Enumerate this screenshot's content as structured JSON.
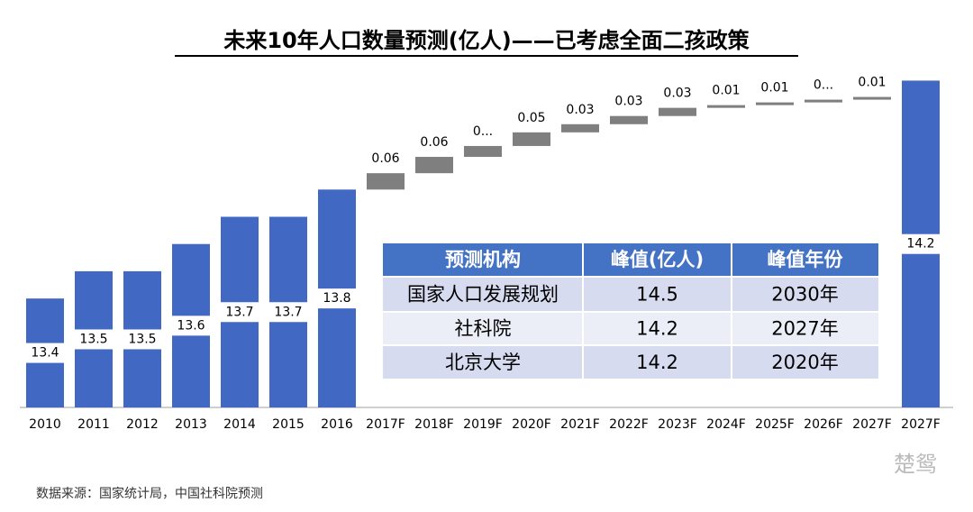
{
  "chart_data": {
    "type": "waterfall",
    "title": "未来10年人口数量预测(亿人)——已考虑全面二孩政策",
    "categories": [
      "2010",
      "2011",
      "2012",
      "2013",
      "2014",
      "2015",
      "2016",
      "2017F",
      "2018F",
      "2019F",
      "2020F",
      "2021F",
      "2022F",
      "2023F",
      "2024F",
      "2025F",
      "2026F",
      "2027F",
      "2027F"
    ],
    "values": [
      13.4,
      13.5,
      13.5,
      13.6,
      13.7,
      13.7,
      13.8,
      0.06,
      0.06,
      0.04,
      0.05,
      0.03,
      0.03,
      0.03,
      0.01,
      0.01,
      0.01,
      0.01,
      14.2
    ],
    "value_labels": [
      "13.4",
      "13.5",
      "13.5",
      "13.6",
      "13.7",
      "13.7",
      "13.8",
      "0.06",
      "0.06",
      "0...",
      "0.05",
      "0.03",
      "0.03",
      "0.03",
      "0.01",
      "0.01",
      "0...",
      "0.01",
      "14.2"
    ],
    "measure": [
      "total",
      "total",
      "total",
      "total",
      "total",
      "total",
      "total",
      "increase",
      "increase",
      "increase",
      "increase",
      "increase",
      "increase",
      "increase",
      "increase",
      "increase",
      "increase",
      "increase",
      "total"
    ],
    "total_color": "#4169c4",
    "increase_color": "#7f7f7f",
    "ylim": [
      13,
      14.4
    ],
    "table": {
      "header": [
        "预测机构",
        "峰值(亿人)",
        "峰值年份"
      ],
      "rows": [
        [
          "国家人口发展规划",
          "14.5",
          "2030年"
        ],
        [
          "社科院",
          "14.2",
          "2027年"
        ],
        [
          "北京大学",
          "14.2",
          "2020年"
        ]
      ]
    },
    "source": "数据来源：国家统计局，中国社科院预测",
    "watermark": "楚鸳"
  }
}
